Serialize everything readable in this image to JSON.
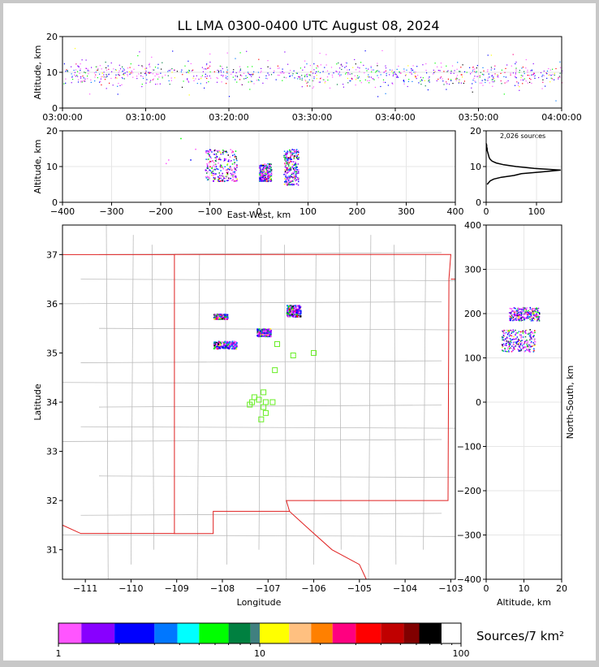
{
  "title": "LL LMA 0300-0400 UTC August 08, 2024",
  "colorbar_label": "Sources/7 km²",
  "sources_label": "2,026 sources",
  "chart_data": [
    {
      "panel": "time-height",
      "type": "scatter",
      "ylabel": "Altitude, km",
      "xlim": [
        "03:00:00",
        "04:00:00"
      ],
      "ylim": [
        0,
        20
      ],
      "xticks": [
        "03:00:00",
        "03:10:00",
        "03:20:00",
        "03:30:00",
        "03:40:00",
        "03:50:00",
        "04:00:00"
      ],
      "yticks": [
        "0",
        "10",
        "20"
      ],
      "source_altitude_range_km": [
        2,
        17
      ]
    },
    {
      "panel": "east-west vs altitude",
      "type": "scatter",
      "xlabel": "East-West, km",
      "ylabel": "Altitude, km",
      "xlim": [
        -400,
        400
      ],
      "ylim": [
        0,
        20
      ],
      "xticks": [
        "−400",
        "−300",
        "−200",
        "−100",
        "0",
        "100",
        "200",
        "300",
        "400"
      ],
      "yticks": [
        "0",
        "10",
        "20"
      ],
      "clusters_km": [
        {
          "x_range": [
            -110,
            -45
          ],
          "alt_range": [
            6,
            15
          ]
        },
        {
          "x_range": [
            0,
            25
          ],
          "alt_range": [
            6,
            11
          ]
        },
        {
          "x_range": [
            50,
            80
          ],
          "alt_range": [
            5,
            15
          ]
        }
      ]
    },
    {
      "panel": "altitude histogram",
      "type": "line",
      "xlim": [
        0,
        150
      ],
      "ylim": [
        0,
        20
      ],
      "xticks": [
        "0",
        "100"
      ],
      "yticks": [
        "0",
        "10",
        "20"
      ],
      "profile": [
        {
          "alt": 5.0,
          "count": 2
        },
        {
          "alt": 5.5,
          "count": 5
        },
        {
          "alt": 6.0,
          "count": 8
        },
        {
          "alt": 6.5,
          "count": 15
        },
        {
          "alt": 7.0,
          "count": 30
        },
        {
          "alt": 7.5,
          "count": 55
        },
        {
          "alt": 8.0,
          "count": 70
        },
        {
          "alt": 8.5,
          "count": 110
        },
        {
          "alt": 9.0,
          "count": 148
        },
        {
          "alt": 9.5,
          "count": 95
        },
        {
          "alt": 10.0,
          "count": 60
        },
        {
          "alt": 10.5,
          "count": 35
        },
        {
          "alt": 11.0,
          "count": 20
        },
        {
          "alt": 11.5,
          "count": 12
        },
        {
          "alt": 12.0,
          "count": 8
        },
        {
          "alt": 12.5,
          "count": 6
        },
        {
          "alt": 13.0,
          "count": 5
        },
        {
          "alt": 13.5,
          "count": 4
        },
        {
          "alt": 14.0,
          "count": 3
        },
        {
          "alt": 14.5,
          "count": 2
        },
        {
          "alt": 15.0,
          "count": 2
        },
        {
          "alt": 15.5,
          "count": 1
        },
        {
          "alt": 16.0,
          "count": 1
        },
        {
          "alt": 16.5,
          "count": 0
        }
      ]
    },
    {
      "panel": "plan view map",
      "type": "scatter",
      "xlabel": "Longitude",
      "ylabel": "Latitude",
      "xlim": [
        -111.5,
        -102.9
      ],
      "ylim": [
        30.4,
        37.6
      ],
      "xticks": [
        "−111",
        "−110",
        "−109",
        "−108",
        "−107",
        "−106",
        "−105",
        "−104",
        "−103"
      ],
      "yticks": [
        "31",
        "32",
        "33",
        "34",
        "35",
        "36",
        "37"
      ],
      "stations": [
        [
          -106.8,
          35.18
        ],
        [
          -106.45,
          34.95
        ],
        [
          -106.0,
          35.0
        ],
        [
          -106.85,
          34.65
        ],
        [
          -107.1,
          34.2
        ],
        [
          -107.2,
          34.05
        ],
        [
          -107.3,
          34.1
        ],
        [
          -107.05,
          34.0
        ],
        [
          -107.35,
          34.0
        ],
        [
          -107.4,
          33.95
        ],
        [
          -107.1,
          33.9
        ],
        [
          -107.05,
          33.78
        ],
        [
          -107.15,
          33.65
        ],
        [
          -106.9,
          34.0
        ]
      ],
      "clusters": [
        {
          "lon_range": [
            -106.6,
            -106.3
          ],
          "lat_range": [
            35.75,
            35.98
          ]
        },
        {
          "lon_range": [
            -107.25,
            -106.95
          ],
          "lat_range": [
            35.35,
            35.5
          ]
        },
        {
          "lon_range": [
            -108.2,
            -107.7
          ],
          "lat_range": [
            35.1,
            35.25
          ]
        },
        {
          "lon_range": [
            -108.2,
            -107.9
          ],
          "lat_range": [
            35.7,
            35.8
          ]
        }
      ]
    },
    {
      "panel": "altitude vs north-south",
      "type": "scatter",
      "xlabel": "Altitude, km",
      "ylabel": "North-South, km",
      "xlim": [
        0,
        20
      ],
      "ylim": [
        -400,
        400
      ],
      "xticks": [
        "0",
        "10",
        "20"
      ],
      "yticks": [
        "−400",
        "−300",
        "−200",
        "−100",
        "0",
        "100",
        "200",
        "300",
        "400"
      ],
      "clusters_km": [
        {
          "alt_range": [
            6,
            14
          ],
          "y_range": [
            185,
            215
          ]
        },
        {
          "alt_range": [
            4,
            13
          ],
          "y_range": [
            115,
            165
          ]
        }
      ]
    },
    {
      "panel": "colorbar",
      "type": "colorbar",
      "scale": "log",
      "range": [
        1,
        100
      ],
      "tick_labels": [
        "1",
        "10",
        "100"
      ],
      "colors": [
        "#ff55ff",
        "#8800ff",
        "#0000ff",
        "#0077ff",
        "#00ffff",
        "#00ff00",
        "#008040",
        "#408080",
        "#ffff00",
        "#ffc080",
        "#ff8000",
        "#ff0080",
        "#ff0000",
        "#c00000",
        "#800000",
        "#000000",
        "#808080",
        "#c0c0c0",
        "#ffffff"
      ]
    }
  ]
}
